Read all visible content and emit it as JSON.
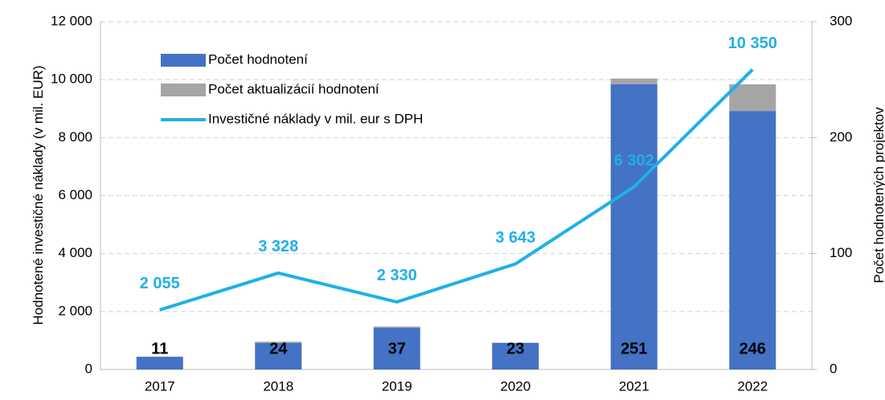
{
  "chart_data": {
    "type": "bar",
    "categories": [
      "2017",
      "2018",
      "2019",
      "2020",
      "2021",
      "2022"
    ],
    "y_label": "Hodnotené investičné náklady (v mil. EUR)",
    "y2_label": "Počet hodnotených projektov",
    "series": [
      {
        "name": "Počet hodnotení",
        "color": "#4472c4",
        "axis": "y2",
        "type": "bar",
        "values": [
          11,
          23,
          36,
          23,
          246,
          223
        ]
      },
      {
        "name": "Počet aktualizácií hodnotení",
        "color": "#a5a5a5",
        "axis": "y2",
        "type": "bar",
        "values": [
          0,
          1,
          1,
          0,
          5,
          23
        ]
      },
      {
        "name": "Investičné náklady v mil. eur s DPH",
        "color": "#1fb0e8",
        "type": "line",
        "values": [
          2055,
          3328,
          2330,
          3643,
          6302,
          10350
        ],
        "value_labels": [
          "2 055",
          "3 328",
          "2 330",
          "3 643",
          "6 302",
          "10 350"
        ]
      }
    ],
    "totals": [
      11,
      24,
      37,
      23,
      251,
      246
    ],
    "ylim": [
      0,
      12000
    ],
    "yticks": [
      0,
      {
        "value": 2000,
        "label": "2 000"
      },
      {
        "value": 4000,
        "label": "4 000"
      },
      {
        "value": 6000,
        "label": "6 000"
      },
      {
        "value": 8000,
        "label": "8 000"
      },
      {
        "value": 10000,
        "label": "10 000"
      },
      {
        "value": 12000,
        "label": "12 000"
      }
    ],
    "y2lim": [
      0,
      300
    ],
    "y2ticks": [
      0,
      100,
      200,
      300
    ],
    "grid": true,
    "legend": "upper left"
  }
}
